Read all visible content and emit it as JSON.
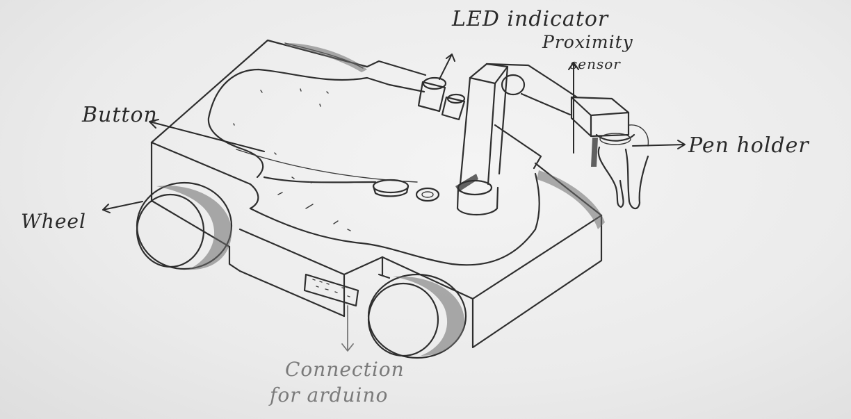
{
  "labels": {
    "led": "LED indicator",
    "proximity_line1": "Proximity",
    "proximity_line2": "sensor",
    "button": "Button",
    "pen_holder": "Pen holder",
    "wheel": "Wheel",
    "connection_line1": "Connection",
    "connection_line2": "for arduino"
  },
  "colors": {
    "ink": "#2e2e2e",
    "faded_ink": "#7a7a7a",
    "paper": "#ececec"
  }
}
